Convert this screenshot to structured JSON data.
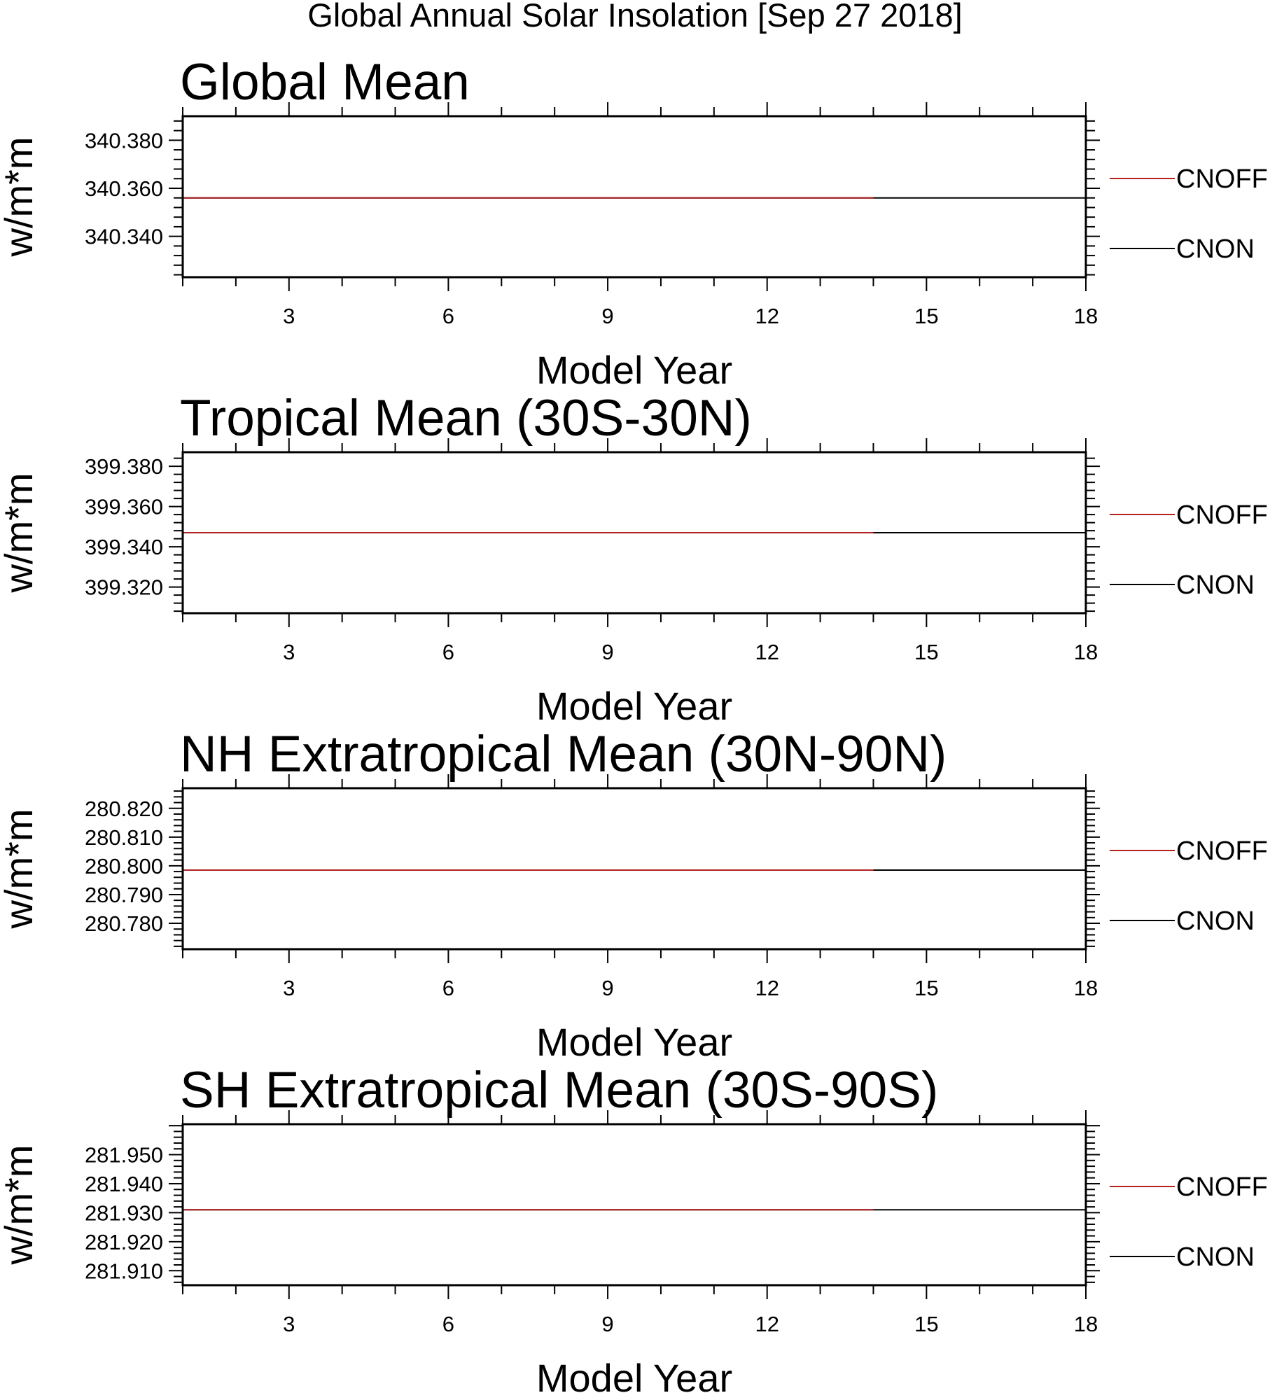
{
  "figure": {
    "title": "Global Annual Solar Insolation [Sep 27 2018]"
  },
  "colors": {
    "CNOFF": "#b22222",
    "CNON": "#000000"
  },
  "chart_data": [
    {
      "type": "line",
      "title": "Global Mean",
      "xlabel": "Model Year",
      "ylabel": "w/m*m",
      "xlim": [
        1,
        18
      ],
      "ylim": [
        340.323,
        340.39
      ],
      "x_ticks": [
        3,
        6,
        9,
        12,
        15,
        18
      ],
      "y_ticks": [
        340.34,
        340.36,
        340.38
      ],
      "y_tick_labels": [
        "340.340",
        "340.360",
        "340.380"
      ],
      "legend": [
        "CNOFF",
        "CNON"
      ],
      "legend_placement": "right",
      "grid": false,
      "series": [
        {
          "name": "CNOFF",
          "x": [
            1,
            14
          ],
          "values": [
            340.356,
            340.356
          ]
        },
        {
          "name": "CNON",
          "x": [
            1,
            18
          ],
          "values": [
            340.356,
            340.356
          ]
        }
      ]
    },
    {
      "type": "line",
      "title": "Tropical Mean (30S-30N)",
      "xlabel": "Model Year",
      "ylabel": "w/m*m",
      "xlim": [
        1,
        18
      ],
      "ylim": [
        399.307,
        399.387
      ],
      "x_ticks": [
        3,
        6,
        9,
        12,
        15,
        18
      ],
      "y_ticks": [
        399.32,
        399.34,
        399.36,
        399.38
      ],
      "y_tick_labels": [
        "399.320",
        "399.340",
        "399.360",
        "399.380"
      ],
      "legend": [
        "CNOFF",
        "CNON"
      ],
      "legend_placement": "right",
      "grid": false,
      "series": [
        {
          "name": "CNOFF",
          "x": [
            1,
            14
          ],
          "values": [
            399.347,
            399.347
          ]
        },
        {
          "name": "CNON",
          "x": [
            1,
            18
          ],
          "values": [
            399.347,
            399.347
          ]
        }
      ]
    },
    {
      "type": "line",
      "title": "NH Extratropical Mean (30N-90N)",
      "xlabel": "Model Year",
      "ylabel": "w/m*m",
      "xlim": [
        1,
        18
      ],
      "ylim": [
        280.771,
        280.827
      ],
      "x_ticks": [
        3,
        6,
        9,
        12,
        15,
        18
      ],
      "y_ticks": [
        280.78,
        280.79,
        280.8,
        280.81,
        280.82
      ],
      "y_tick_labels": [
        "280.780",
        "280.790",
        "280.800",
        "280.810",
        "280.820"
      ],
      "legend": [
        "CNOFF",
        "CNON"
      ],
      "legend_placement": "right",
      "grid": false,
      "series": [
        {
          "name": "CNOFF",
          "x": [
            1,
            14
          ],
          "values": [
            280.7985,
            280.7985
          ]
        },
        {
          "name": "CNON",
          "x": [
            1,
            18
          ],
          "values": [
            280.7985,
            280.7985
          ]
        }
      ]
    },
    {
      "type": "line",
      "title": "SH Extratropical Mean (30S-90S)",
      "xlabel": "Model Year",
      "ylabel": "w/m*m",
      "xlim": [
        1,
        18
      ],
      "ylim": [
        281.905,
        281.9605
      ],
      "x_ticks": [
        3,
        6,
        9,
        12,
        15,
        18
      ],
      "y_ticks": [
        281.91,
        281.92,
        281.93,
        281.94,
        281.95
      ],
      "y_tick_labels": [
        "281.910",
        "281.920",
        "281.930",
        "281.940",
        "281.950"
      ],
      "legend": [
        "CNOFF",
        "CNON"
      ],
      "legend_placement": "right",
      "grid": false,
      "series": [
        {
          "name": "CNOFF",
          "x": [
            1,
            14
          ],
          "values": [
            281.931,
            281.931
          ]
        },
        {
          "name": "CNON",
          "x": [
            1,
            18
          ],
          "values": [
            281.931,
            281.931
          ]
        }
      ]
    }
  ]
}
